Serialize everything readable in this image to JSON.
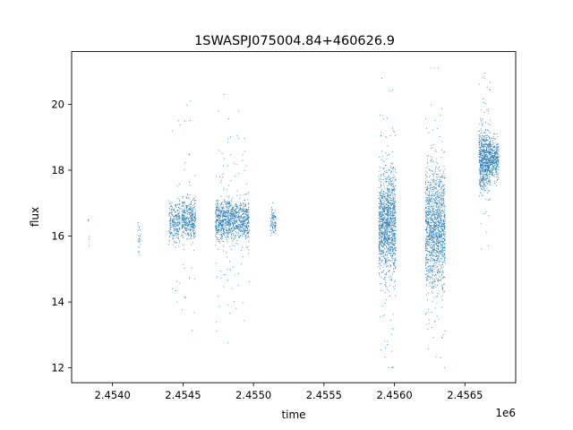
{
  "chart_data": {
    "type": "scatter",
    "title": "1SWASPJ075004.84+460626.9",
    "xlabel": "time",
    "ylabel": "flux",
    "x_offset_label": "1e6",
    "xlim": [
      2.45371,
      2.45686
    ],
    "ylim": [
      11.55,
      21.6
    ],
    "x_ticks": [
      2.454,
      2.4545,
      2.455,
      2.4555,
      2.456,
      2.4565
    ],
    "x_tick_labels": [
      "2.4540",
      "2.4545",
      "2.4550",
      "2.4555",
      "2.4560",
      "2.4565"
    ],
    "y_ticks": [
      12,
      14,
      16,
      18,
      20
    ],
    "y_tick_labels": [
      "12",
      "14",
      "16",
      "18",
      "20"
    ],
    "grid": false,
    "legend": "none",
    "point_color": "#1f77b4",
    "clusters": [
      {
        "x_center": 2.45383,
        "x_halfwidth": 5e-06,
        "y_center": 16.1,
        "y_sd": 0.35,
        "y_min": 15.5,
        "y_max": 16.5,
        "points": 6
      },
      {
        "x_center": 2.45419,
        "x_halfwidth": 1e-05,
        "y_center": 15.9,
        "y_sd": 0.3,
        "y_min": 15.1,
        "y_max": 16.4,
        "points": 25
      },
      {
        "x_center": 2.45444,
        "x_halfwidth": 4e-05,
        "y_center": 16.45,
        "y_sd": 0.3,
        "y_min": 12.9,
        "y_max": 19.5,
        "points": 260
      },
      {
        "x_center": 2.45454,
        "x_halfwidth": 5e-05,
        "y_center": 16.5,
        "y_sd": 0.3,
        "y_min": 12.5,
        "y_max": 20.1,
        "points": 420
      },
      {
        "x_center": 2.45485,
        "x_halfwidth": 0.00012,
        "y_center": 16.5,
        "y_sd": 0.3,
        "y_min": 12.5,
        "y_max": 20.3,
        "points": 1100
      },
      {
        "x_center": 2.45514,
        "x_halfwidth": 2e-05,
        "y_center": 16.5,
        "y_sd": 0.25,
        "y_min": 15.9,
        "y_max": 17.2,
        "points": 90
      },
      {
        "x_center": 2.45595,
        "x_halfwidth": 6e-05,
        "y_center": 16.4,
        "y_sd": 0.75,
        "y_min": 12.0,
        "y_max": 21.0,
        "points": 1300
      },
      {
        "x_center": 2.45629,
        "x_halfwidth": 7e-05,
        "y_center": 16.3,
        "y_sd": 0.85,
        "y_min": 12.0,
        "y_max": 21.1,
        "points": 1400
      },
      {
        "x_center": 2.45664,
        "x_halfwidth": 4e-05,
        "y_center": 18.3,
        "y_sd": 0.45,
        "y_min": 15.0,
        "y_max": 21.1,
        "points": 700
      },
      {
        "x_center": 2.45671,
        "x_halfwidth": 3e-05,
        "y_center": 18.35,
        "y_sd": 0.3,
        "y_min": 17.4,
        "y_max": 19.1,
        "points": 300
      }
    ]
  }
}
